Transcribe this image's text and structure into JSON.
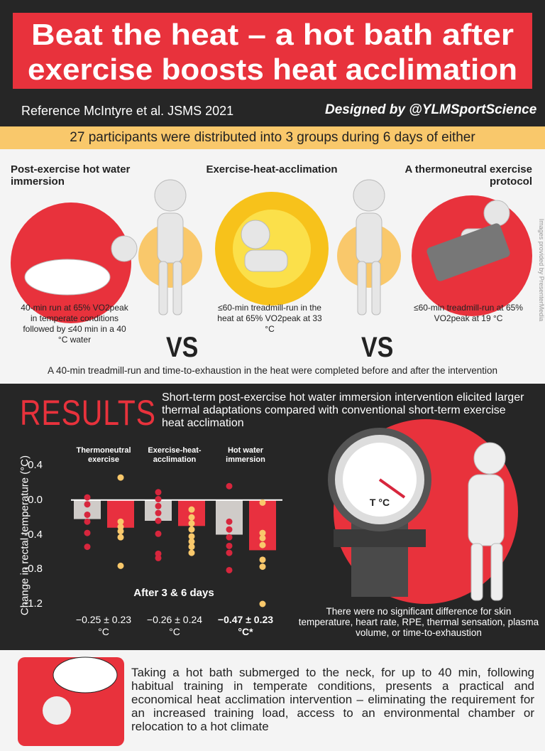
{
  "header": {
    "title_lines": [
      "Beat the heat – a hot bath after",
      "exercise boosts heat acclimation"
    ],
    "reference": "Reference McIntyre et al. JSMS 2021",
    "credit": "Designed by @YLMSportScience"
  },
  "intro": "27 participants were distributed into 3 groups during 6 days of either",
  "groups": [
    {
      "title": "Post-exercise hot water immersion",
      "description": "40-min run at 65% VO2peak in temperate conditions followed by ≤40 min in a 40 °C water"
    },
    {
      "title": "Exercise-heat-acclimation",
      "description": "≤60-min treadmill-run in the heat at 65% VO2peak at 33 °C"
    },
    {
      "title": "A thermoneutral exercise protocol",
      "description": "≤60-min treadmill-run at 65% VO2peak at 19 °C"
    }
  ],
  "versus": [
    "VS",
    "VS"
  ],
  "image_credit": "Images provided by PresenterMedia",
  "protocol_note": "A 40-min treadmill-run and time-to-exhaustion in the heat were completed before and after the intervention",
  "results": {
    "heading": "RESULTS",
    "summary": "Short-term post-exercise hot water immersion intervention elicited larger thermal adaptations compared with conventional short-term exercise heat acclimation",
    "gauge_label": "T °C",
    "note": "There were no significant difference for skin temperature, heart rate, RPE, thermal sensation, plasma volume, or time-to-exhaustion"
  },
  "chart_data": {
    "type": "bar",
    "y_label": "Change in rectal temperature (°C)",
    "x_label": "After 3 & 6 days",
    "categories": [
      "Thermoneutral exercise",
      "Exercise-heat-acclimation",
      "Hot water immersion"
    ],
    "series": [
      {
        "color": "#cfcbc8",
        "values": [
          -0.22,
          -0.24,
          -0.4
        ],
        "points": {
          "color": "#d7263d",
          "values": [
            [
              0.03,
              -0.05,
              -0.17,
              -0.25,
              -0.38,
              -0.54
            ],
            [
              0.09,
              0.01,
              -0.07,
              -0.15,
              -0.24,
              -0.39,
              -0.62,
              -0.67
            ],
            [
              0.16,
              -0.25,
              -0.34,
              -0.43,
              -0.53,
              -0.61,
              -0.81
            ]
          ]
        }
      },
      {
        "color": "#e8303f",
        "values": [
          -0.32,
          -0.3,
          -0.58
        ],
        "points": {
          "color": "#f9c86b",
          "values": [
            [
              0.26,
              -0.25,
              -0.31,
              -0.36,
              -0.43,
              -0.76
            ],
            [
              -0.11,
              -0.2,
              -0.27,
              -0.34,
              -0.42,
              -0.48,
              -0.54,
              -0.61
            ],
            [
              -0.03,
              -0.38,
              -0.44,
              -0.52,
              -0.69,
              -0.77,
              -1.2
            ]
          ]
        }
      }
    ],
    "stats": [
      "−0.25 ± 0.23 °C",
      "−0.26 ± 0.24 °C",
      "−0.47 ± 0.23 °C*"
    ],
    "ylim": [
      -1.2,
      0.4
    ],
    "yticks": [
      0.4,
      {
        "value": 0,
        "label": "0.0"
      },
      -0.4,
      -0.8,
      -1.2
    ],
    "grid": false
  },
  "conclusion": "Taking a hot bath submerged to the neck, for up to 40 min, following habitual training in temperate conditions, presents a practical and economical heat acclimation intervention – eliminating the requirement for an increased training load, access to an environmental chamber or relocation to a hot climate"
}
